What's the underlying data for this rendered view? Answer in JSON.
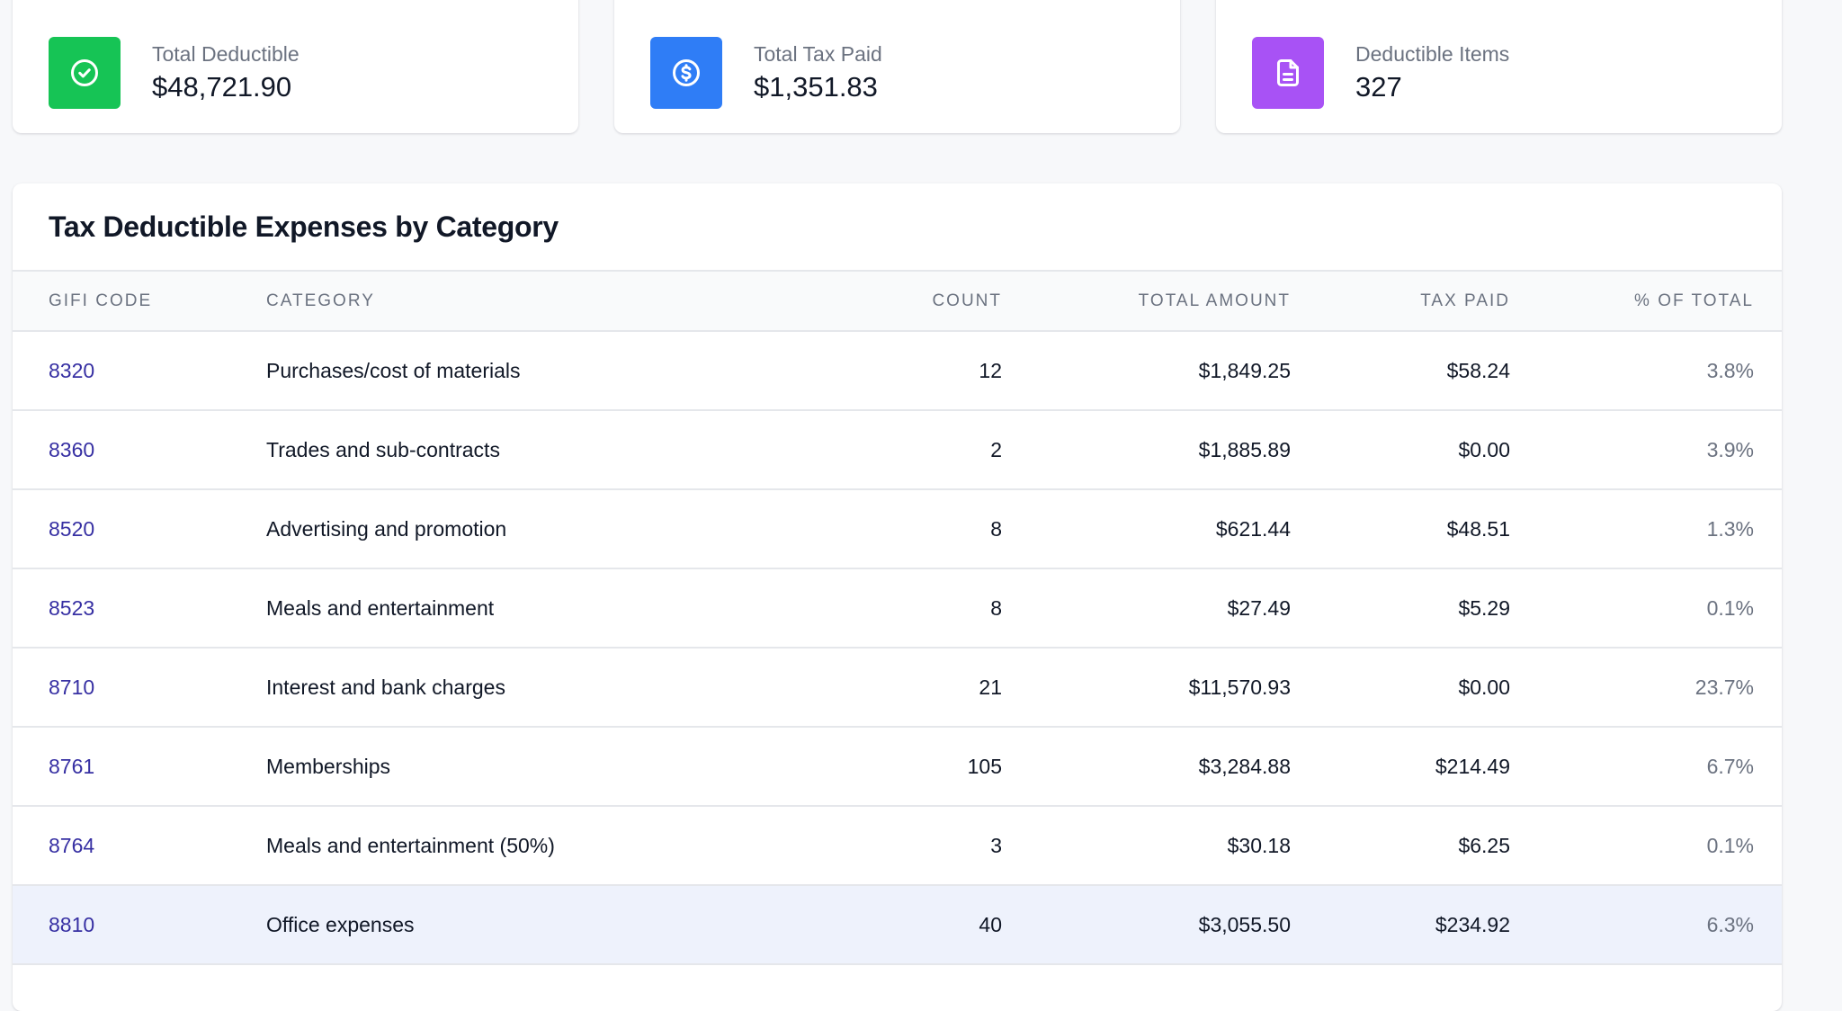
{
  "stats": [
    {
      "label": "Total Deductible",
      "value": "$48,721.90",
      "icon": "check-circle-icon",
      "color": "#16c455"
    },
    {
      "label": "Total Tax Paid",
      "value": "$1,351.83",
      "icon": "dollar-circle-icon",
      "color": "#2f7df6"
    },
    {
      "label": "Deductible Items",
      "value": "327",
      "icon": "document-icon",
      "color": "#a852f5"
    }
  ],
  "table": {
    "title": "Tax Deductible Expenses by Category",
    "columns": {
      "code": "GIFI CODE",
      "category": "CATEGORY",
      "count": "COUNT",
      "total": "TOTAL AMOUNT",
      "tax": "TAX PAID",
      "pct": "% OF TOTAL"
    },
    "rows": [
      {
        "code": "8320",
        "category": "Purchases/cost of materials",
        "count": "12",
        "total": "$1,849.25",
        "tax": "$58.24",
        "pct": "3.8%"
      },
      {
        "code": "8360",
        "category": "Trades and sub-contracts",
        "count": "2",
        "total": "$1,885.89",
        "tax": "$0.00",
        "pct": "3.9%"
      },
      {
        "code": "8520",
        "category": "Advertising and promotion",
        "count": "8",
        "total": "$621.44",
        "tax": "$48.51",
        "pct": "1.3%"
      },
      {
        "code": "8523",
        "category": "Meals and entertainment",
        "count": "8",
        "total": "$27.49",
        "tax": "$5.29",
        "pct": "0.1%"
      },
      {
        "code": "8710",
        "category": "Interest and bank charges",
        "count": "21",
        "total": "$11,570.93",
        "tax": "$0.00",
        "pct": "23.7%"
      },
      {
        "code": "8761",
        "category": "Memberships",
        "count": "105",
        "total": "$3,284.88",
        "tax": "$214.49",
        "pct": "6.7%"
      },
      {
        "code": "8764",
        "category": "Meals and entertainment (50%)",
        "count": "3",
        "total": "$30.18",
        "tax": "$6.25",
        "pct": "0.1%"
      },
      {
        "code": "8810",
        "category": "Office expenses",
        "count": "40",
        "total": "$3,055.50",
        "tax": "$234.92",
        "pct": "6.3%",
        "highlighted": true
      }
    ]
  }
}
